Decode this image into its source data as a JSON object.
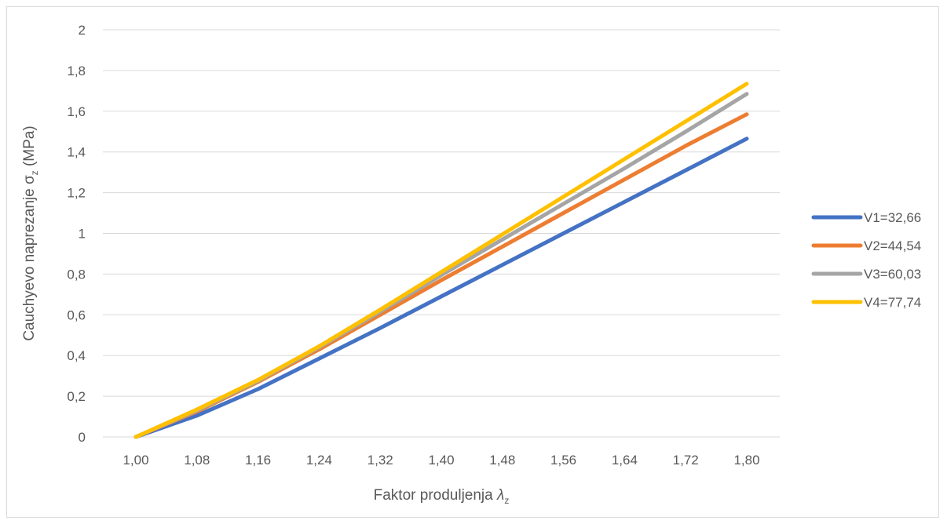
{
  "chart_data": {
    "type": "line",
    "title": "",
    "xlabel_main": "Faktor produljenja ",
    "xlabel_symbol": "λ",
    "xlabel_sub": "z",
    "ylabel_main": "Cauchyevo naprezanje σ",
    "ylabel_sub": "z",
    "ylabel_unit": " (MPa)",
    "categories": [
      "1,00",
      "1,08",
      "1,16",
      "1,24",
      "1,32",
      "1,40",
      "1,48",
      "1,56",
      "1,64",
      "1,72",
      "1,80"
    ],
    "x": [
      1.0,
      1.08,
      1.16,
      1.24,
      1.32,
      1.4,
      1.48,
      1.56,
      1.64,
      1.72,
      1.8
    ],
    "y_ticks": [
      "0",
      "0,2",
      "0,4",
      "0,6",
      "0,8",
      "1",
      "1,2",
      "1,4",
      "1,6",
      "1,8",
      "2"
    ],
    "ylim": [
      0,
      2
    ],
    "grid": true,
    "legend_position": "right",
    "series": [
      {
        "name": "V1=32,66",
        "color": "#4472c4",
        "values": [
          0,
          0.105,
          0.235,
          0.385,
          0.535,
          0.69,
          0.845,
          1.0,
          1.155,
          1.31,
          1.465
        ]
      },
      {
        "name": "V2=44,54",
        "color": "#ed7d31",
        "values": [
          0,
          0.125,
          0.27,
          0.43,
          0.6,
          0.77,
          0.935,
          1.1,
          1.265,
          1.43,
          1.585
        ]
      },
      {
        "name": "V3=60,03",
        "color": "#a5a5a5",
        "values": [
          0,
          0.13,
          0.275,
          0.44,
          0.615,
          0.795,
          0.97,
          1.145,
          1.32,
          1.5,
          1.685
        ]
      },
      {
        "name": "V4=77,74",
        "color": "#ffc000",
        "values": [
          0,
          0.135,
          0.28,
          0.445,
          0.625,
          0.81,
          0.995,
          1.18,
          1.365,
          1.55,
          1.735
        ]
      }
    ]
  }
}
